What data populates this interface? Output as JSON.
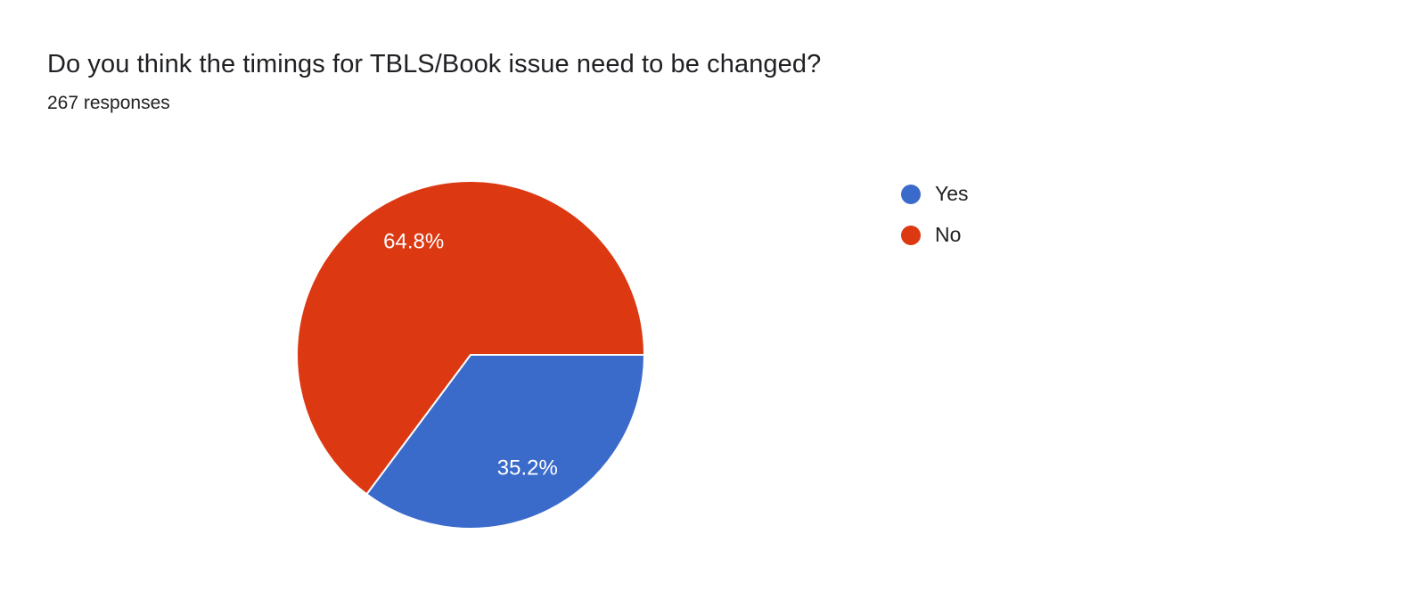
{
  "header": {
    "title": "Do you think the timings for TBLS/Book issue need to be changed?",
    "responses": "267 responses"
  },
  "chart_data": {
    "type": "pie",
    "title": "Do you think the timings for TBLS/Book issue need to be changed?",
    "subtitle": "267 responses",
    "categories": [
      "Yes",
      "No"
    ],
    "values": [
      35.2,
      64.8
    ],
    "unit": "percent",
    "slice_labels": [
      "35.2%",
      "64.8%"
    ],
    "colors": [
      "#3B6BCA",
      "#DC3912"
    ],
    "slice_label_color": "#FFFFFF",
    "start_angle_deg": 0,
    "direction": "clockwise",
    "legend_position": "right",
    "background": "#FFFFFF"
  },
  "legend": {
    "items": [
      {
        "label": "Yes",
        "color": "#3B6BCA"
      },
      {
        "label": "No",
        "color": "#DC3912"
      }
    ]
  }
}
